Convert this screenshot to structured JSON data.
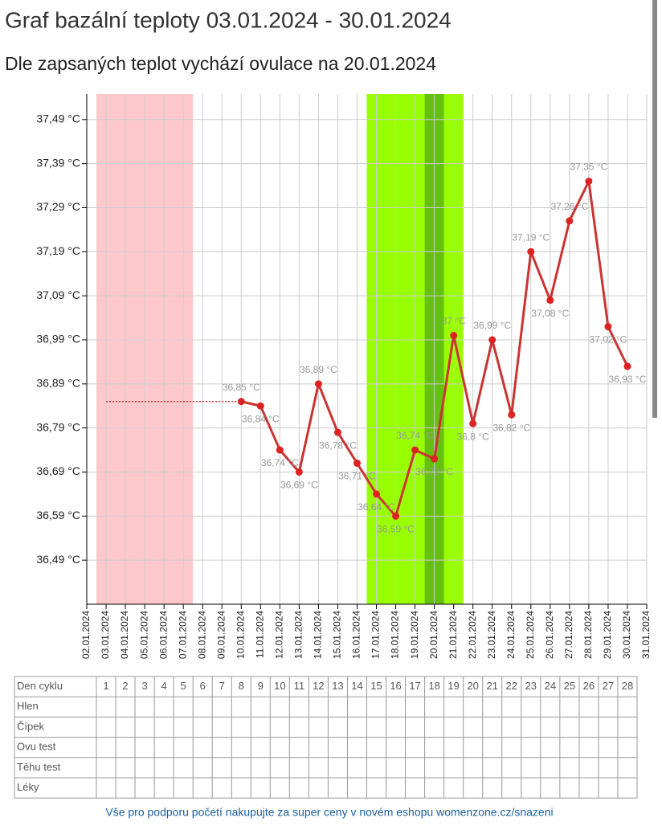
{
  "chart_data": {
    "type": "line",
    "title": "Graf bazální teploty 03.01.2024 - 30.01.2024",
    "subtitle": "Dle zapsaných teplot vychází ovulace na 20.01.2024",
    "categories": [
      "02.01.2024",
      "03.01.2024",
      "04.01.2024",
      "05.01.2024",
      "06.01.2024",
      "07.01.2024",
      "08.01.2024",
      "09.01.2024",
      "10.01.2024",
      "11.01.2024",
      "12.01.2024",
      "13.01.2024",
      "14.01.2024",
      "15.01.2024",
      "16.01.2024",
      "17.01.2024",
      "18.01.2024",
      "19.01.2024",
      "20.01.2024",
      "21.01.2024",
      "22.01.2024",
      "23.01.2024",
      "24.01.2024",
      "25.01.2024",
      "26.01.2024",
      "27.01.2024",
      "28.01.2024",
      "29.01.2024",
      "30.01.2024",
      "31.01.2024"
    ],
    "series": [
      {
        "color": "#cc3333",
        "values": [
          null,
          null,
          null,
          null,
          null,
          null,
          null,
          null,
          36.85,
          36.84,
          36.74,
          36.69,
          36.89,
          36.78,
          36.71,
          36.64,
          36.59,
          36.74,
          36.72,
          37,
          36.8,
          36.99,
          36.82,
          37.19,
          37.08,
          37.26,
          37.35,
          37.02,
          36.93,
          null
        ],
        "value_labels": [
          null,
          null,
          null,
          null,
          null,
          null,
          null,
          null,
          "36,85 °C",
          "36,84 °C",
          "36,74 °C",
          "36,69 °C",
          "36,89 °C",
          "36,78 °C",
          "36,71 °C",
          "36,64 °C",
          "36,59 °C",
          "36,74 °C",
          "36,72 °C",
          "37 °C",
          "36,8 °C",
          "36,99 °C",
          "36,82 °C",
          "37,19 °C",
          "37,08 °C",
          "37,26 °C",
          "37,35 °C",
          "37,02 °C",
          "36,93 °C",
          null
        ]
      },
      {
        "color": "#cc3333",
        "style": "dotted",
        "values": [
          null,
          36.85,
          36.85,
          36.85,
          36.85,
          36.85,
          36.85,
          36.85,
          36.85,
          null,
          null,
          null,
          null,
          null,
          null,
          null,
          null,
          null,
          null,
          null,
          null,
          null,
          null,
          null,
          null,
          null,
          null,
          null,
          null,
          null
        ]
      }
    ],
    "regions": [
      {
        "from": "03.01.2024",
        "to": "07.01.2024",
        "color": "#ffc8cc"
      },
      {
        "from": "17.01.2024",
        "to": "21.01.2024",
        "color": "#99ff00"
      },
      {
        "from": "20.01.2024",
        "to": "20.01.2024",
        "color": "#66c010"
      }
    ],
    "ylim": [
      36.39,
      37.548
    ],
    "yticks": [
      {
        "value": 36.49,
        "label": "36,49 °C"
      },
      {
        "value": 36.59,
        "label": "36,59 °C"
      },
      {
        "value": 36.69,
        "label": "36,69 °C"
      },
      {
        "value": 36.79,
        "label": "36,79 °C"
      },
      {
        "value": 36.89,
        "label": "36,89 °C"
      },
      {
        "value": 36.99,
        "label": "36,99 °C"
      },
      {
        "value": 37.09,
        "label": "37,09 °C"
      },
      {
        "value": 37.19,
        "label": "37,19 °C"
      },
      {
        "value": 37.29,
        "label": "37,29 °C"
      },
      {
        "value": 37.39,
        "label": "37,39 °C"
      },
      {
        "value": 37.49,
        "label": "37,49 °C"
      }
    ],
    "grid": true
  },
  "table": {
    "header": "Den cyklu",
    "days": [
      1,
      2,
      3,
      4,
      5,
      6,
      7,
      8,
      9,
      10,
      11,
      12,
      13,
      14,
      15,
      16,
      17,
      18,
      19,
      20,
      21,
      22,
      23,
      24,
      25,
      26,
      27,
      28
    ],
    "rows": [
      "Hlen",
      "Čípek",
      "Ovu test",
      "Těhu test",
      "Léky"
    ]
  },
  "footer": "Vše pro podporu početí nakupujte za super ceny v novém eshopu womenzone.cz/snazeni"
}
